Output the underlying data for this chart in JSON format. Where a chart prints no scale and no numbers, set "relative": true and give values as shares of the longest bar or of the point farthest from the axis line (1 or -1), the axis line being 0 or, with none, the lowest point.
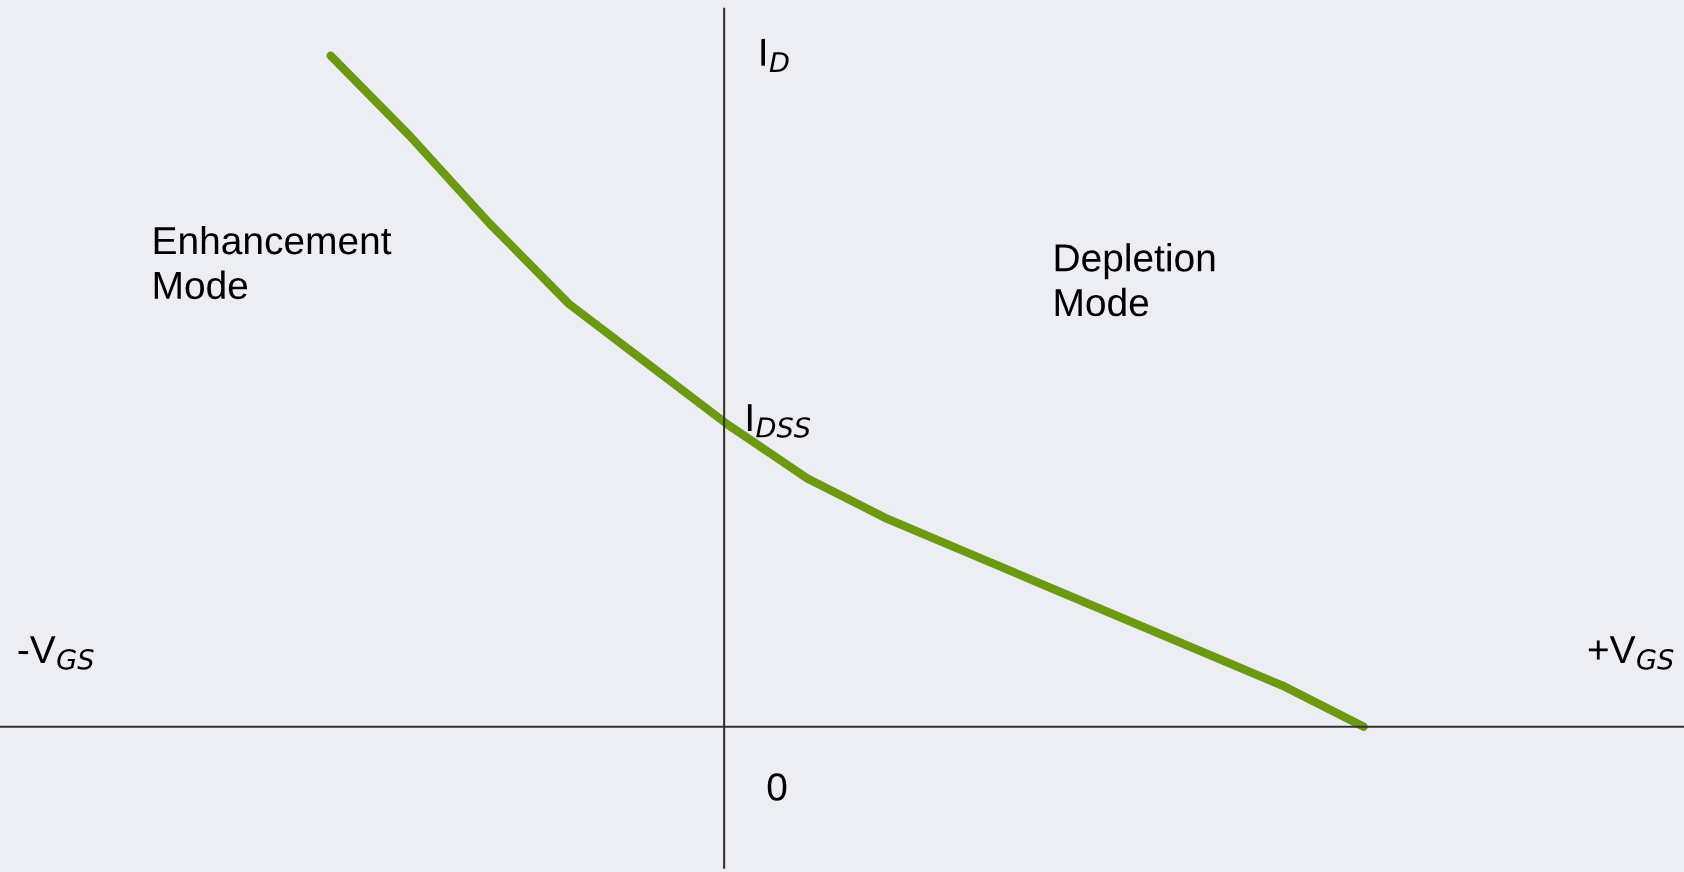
{
  "chart_data": {
    "type": "line",
    "relative": true,
    "ylabel": "I$_{D}$",
    "categories": [
      null,
      null,
      null,
      null,
      null,
      null,
      null,
      null,
      null,
      null,
      null,
      null,
      null,
      null
    ],
    "series": [
      {
        "color": "#6b9a12",
        "values": [
          1.0,
          0.88,
          0.75,
          0.63,
          0.54,
          0.45,
          0.37,
          0.31,
          0.26,
          0.21,
          0.16,
          0.11,
          0.06,
          0.0
        ]
      }
    ],
    "annotations": [
      "-V$_{GS}$",
      "+V$_{GS}$",
      "Enhancement\nMode",
      "Depletion\nMode",
      "I$_{DSS}$",
      "0"
    ],
    "grid": false,
    "legend": false,
    "marker": "none",
    "line_style": "solid"
  }
}
